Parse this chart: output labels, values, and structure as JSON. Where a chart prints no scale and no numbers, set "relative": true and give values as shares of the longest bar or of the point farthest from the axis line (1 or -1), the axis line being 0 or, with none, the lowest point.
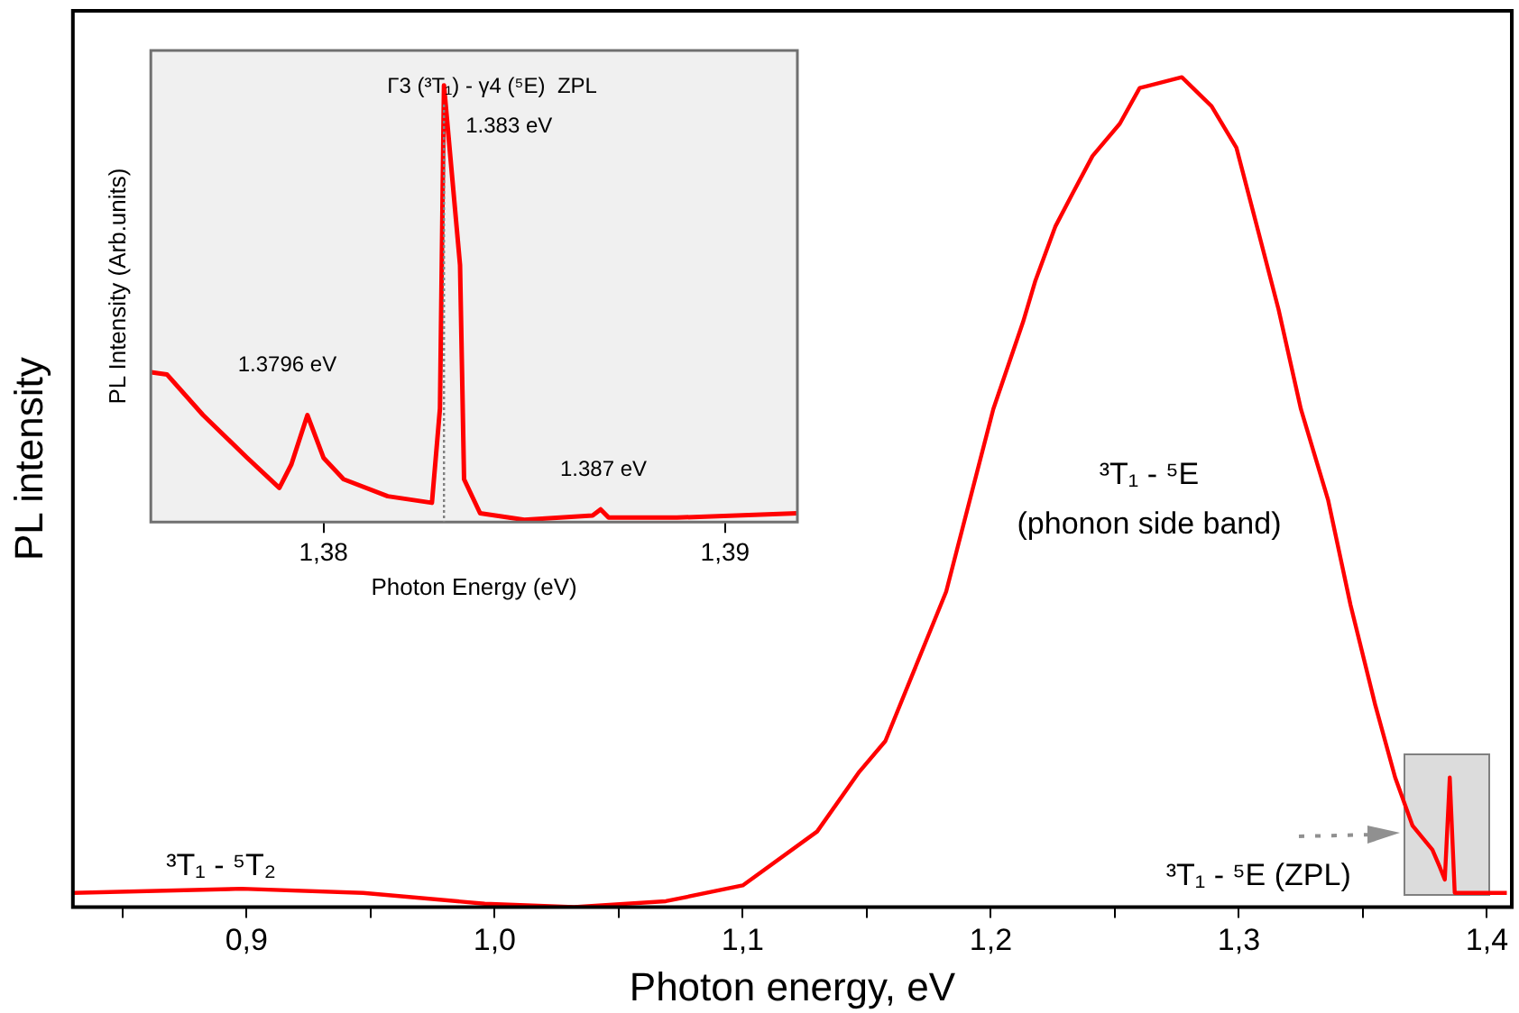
{
  "chart_data": [
    {
      "type": "line",
      "xlabel": "Photon energy, eV",
      "ylabel": "PL intensity",
      "relative": true,
      "xlim": [
        0.83,
        1.41
      ],
      "xticks": [
        {
          "value": 0.85,
          "label": null
        },
        {
          "value": 0.9,
          "label": "0,9"
        },
        {
          "value": 0.95,
          "label": null
        },
        {
          "value": 1.0,
          "label": "1,0"
        },
        {
          "value": 1.05,
          "label": null
        },
        {
          "value": 1.1,
          "label": "1,1"
        },
        {
          "value": 1.15,
          "label": null
        },
        {
          "value": 1.2,
          "label": "1,2"
        },
        {
          "value": 1.25,
          "label": null
        },
        {
          "value": 1.3,
          "label": "1,3"
        },
        {
          "value": 1.35,
          "label": null
        },
        {
          "value": 1.4,
          "label": "1,4"
        }
      ],
      "series": [
        {
          "color": "#ff0000",
          "x": [
            0.83,
            0.898,
            0.947,
            0.996,
            1.032,
            1.069,
            1.1,
            1.13,
            1.147,
            1.1575,
            1.182,
            1.201,
            1.213,
            1.218,
            1.226,
            1.233,
            1.241,
            1.252,
            1.26,
            1.277,
            1.289,
            1.299,
            1.306,
            1.316,
            1.325,
            1.336,
            1.345,
            1.355,
            1.363,
            1.37,
            1.378,
            1.381,
            1.383,
            1.385,
            1.387,
            1.4,
            1.408
          ],
          "values": [
            0.017,
            0.022,
            0.017,
            0.004,
            0,
            0.007,
            0.026,
            0.091,
            0.163,
            0.2,
            0.38,
            0.6,
            0.705,
            0.755,
            0.82,
            0.86,
            0.905,
            0.944,
            0.987,
            1,
            0.965,
            0.915,
            0.835,
            0.72,
            0.6,
            0.49,
            0.364,
            0.243,
            0.156,
            0.098,
            0.069,
            0.048,
            0.033,
            0.156,
            0.017,
            0.017,
            0.017
          ]
        }
      ],
      "annotations": [
        "³T₁ - ⁵T₂",
        "³T₁ - ⁵E",
        "(phonon side band)",
        "³T₁ - ⁵E (ZPL)"
      ]
    },
    {
      "type": "line",
      "title": "Γ3 (³T₁) - γ4 (⁵E)  ZPL",
      "xlabel": "Photon Energy (eV)",
      "ylabel": "PL Intensity (Arb.units)",
      "relative": true,
      "xlim": [
        1.3757,
        1.3918
      ],
      "xticks": [
        {
          "value": 1.38,
          "label": "1,38"
        },
        {
          "value": 1.39,
          "label": "1,39"
        }
      ],
      "series": [
        {
          "color": "#ff0000",
          "x": [
            1.3757,
            1.3761,
            1.377,
            1.3781,
            1.3789,
            1.3792,
            1.3796,
            1.38,
            1.3805,
            1.3816,
            1.3827,
            1.3829,
            1.383,
            1.3834,
            1.3835,
            1.3839,
            1.385,
            1.3867,
            1.3869,
            1.3871,
            1.3888,
            1.3918
          ],
          "values": [
            0.343,
            0.338,
            0.245,
            0.147,
            0.078,
            0.132,
            0.245,
            0.147,
            0.098,
            0.059,
            0.044,
            0.26,
            1,
            0.588,
            0.098,
            0.02,
            0.005,
            0.015,
            0.029,
            0.01,
            0.01,
            0.02
          ]
        }
      ],
      "ref_lines": [
        {
          "axis": "x",
          "value": 1.383,
          "label": "1.383 eV",
          "color": "#808080",
          "line_style": "dotted"
        }
      ],
      "annotations": [
        "1.3796 eV",
        "1.387 eV"
      ]
    }
  ]
}
